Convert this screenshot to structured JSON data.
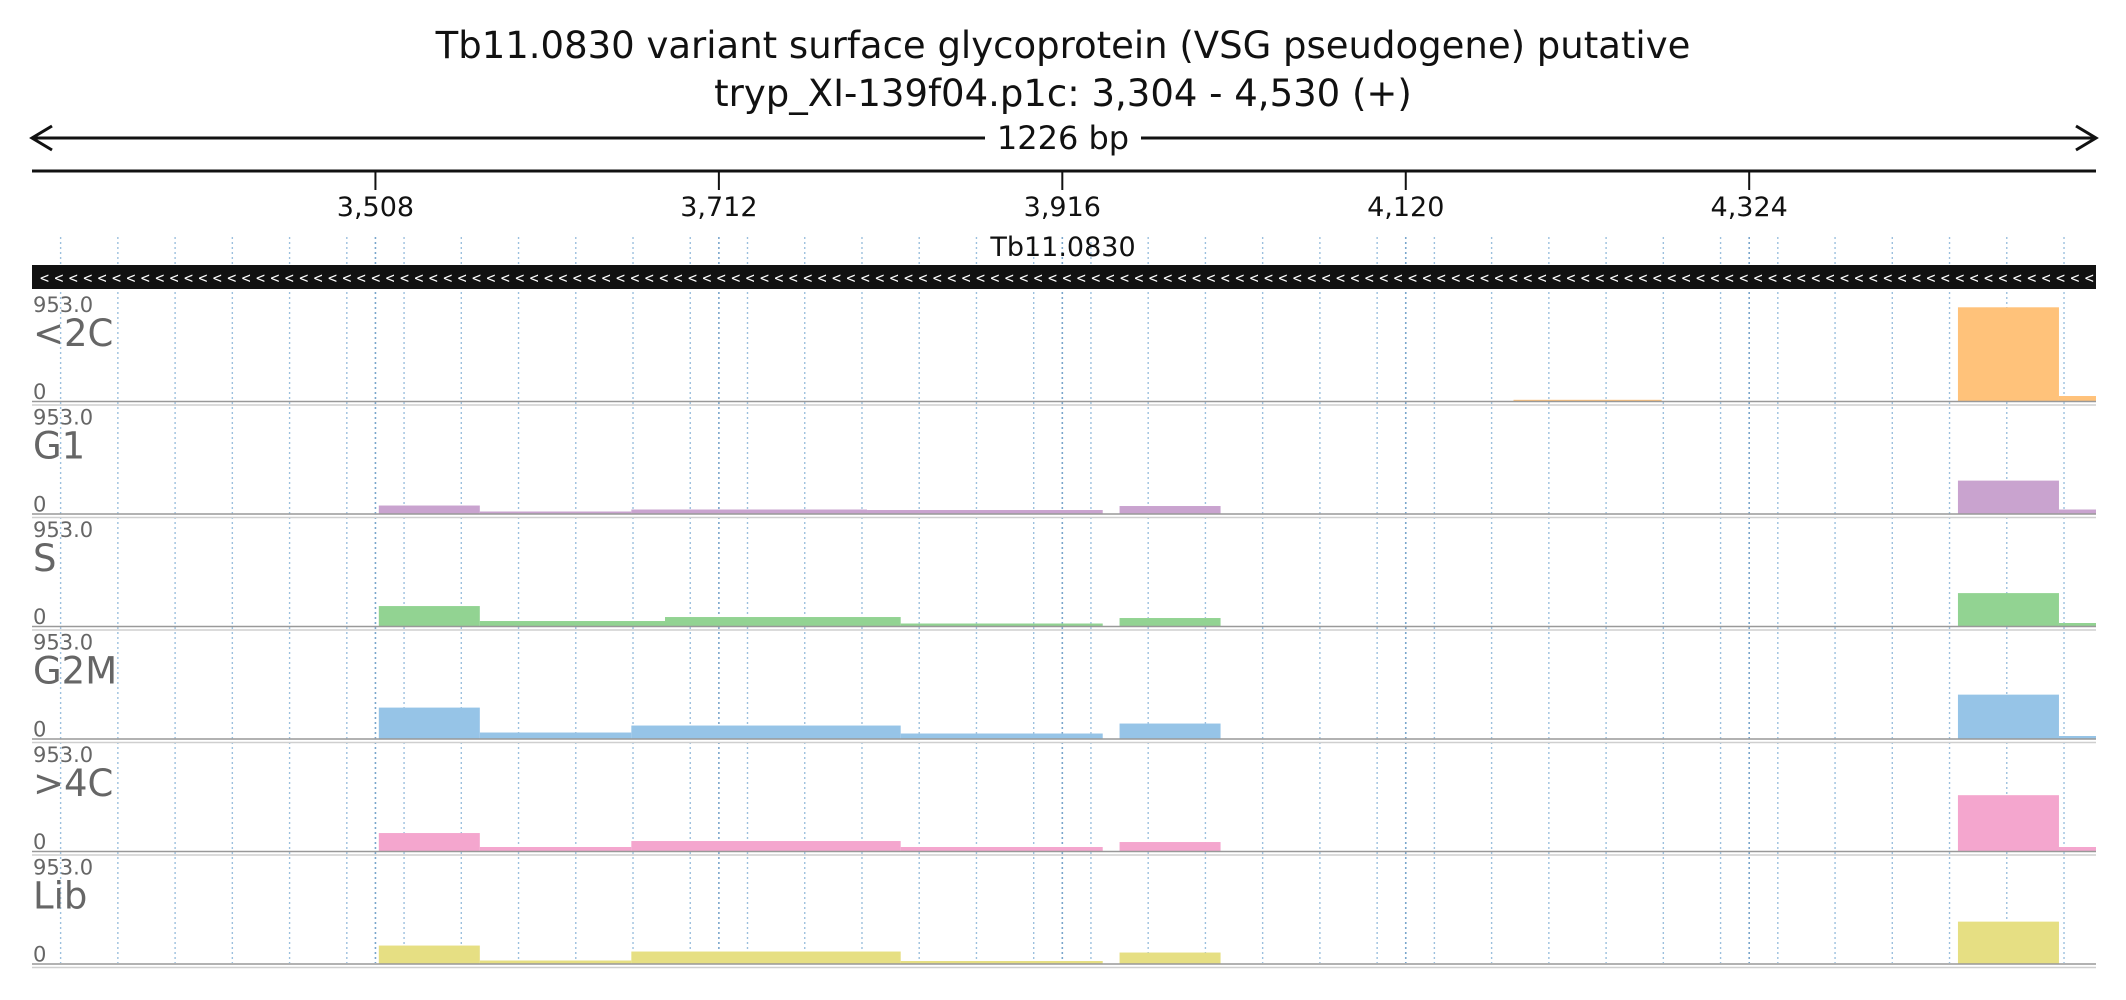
{
  "chart_data": {
    "type": "area",
    "title": "Tb11.0830  variant surface glycoprotein (VSG  pseudogene)  putative",
    "subtitle": "tryp_XI-139f04.p1c: 3,304 - 4,530 (+)",
    "span_label": "1226 bp",
    "x_range": [
      3304,
      4530
    ],
    "x_ticks": [
      3508,
      3712,
      3916,
      4120,
      4324
    ],
    "x_tick_labels": [
      "3,508",
      "3,712",
      "3,916",
      "4,120",
      "4,324"
    ],
    "gene": {
      "name": "Tb11.0830",
      "start": 3304,
      "end": 4530,
      "strand": "-"
    },
    "y_range": [
      0,
      953.0
    ],
    "y_max_label": "953.0",
    "y_min_label": "0",
    "tracks": [
      {
        "name": "<2C",
        "color": "#ffc27a",
        "segments": [
          {
            "start": 4184,
            "end": 4272,
            "value": 12
          },
          {
            "start": 4448,
            "end": 4508,
            "value": 940
          },
          {
            "start": 4508,
            "end": 4530,
            "value": 50
          }
        ]
      },
      {
        "name": "G1",
        "color": "#c9a3cf",
        "segments": [
          {
            "start": 3510,
            "end": 3570,
            "value": 80
          },
          {
            "start": 3570,
            "end": 3660,
            "value": 20
          },
          {
            "start": 3660,
            "end": 3800,
            "value": 40
          },
          {
            "start": 3800,
            "end": 3940,
            "value": 35
          },
          {
            "start": 3950,
            "end": 4010,
            "value": 75
          },
          {
            "start": 4448,
            "end": 4508,
            "value": 330
          },
          {
            "start": 4508,
            "end": 4530,
            "value": 40
          }
        ]
      },
      {
        "name": "S",
        "color": "#92d392",
        "segments": [
          {
            "start": 3510,
            "end": 3570,
            "value": 200
          },
          {
            "start": 3570,
            "end": 3680,
            "value": 50
          },
          {
            "start": 3680,
            "end": 3820,
            "value": 90
          },
          {
            "start": 3820,
            "end": 3940,
            "value": 25
          },
          {
            "start": 3950,
            "end": 4010,
            "value": 80
          },
          {
            "start": 4448,
            "end": 4508,
            "value": 330
          },
          {
            "start": 4508,
            "end": 4530,
            "value": 30
          }
        ]
      },
      {
        "name": "G2M",
        "color": "#96c4e7",
        "segments": [
          {
            "start": 3510,
            "end": 3570,
            "value": 310
          },
          {
            "start": 3570,
            "end": 3660,
            "value": 60
          },
          {
            "start": 3660,
            "end": 3820,
            "value": 130
          },
          {
            "start": 3820,
            "end": 3940,
            "value": 50
          },
          {
            "start": 3950,
            "end": 4010,
            "value": 150
          },
          {
            "start": 4448,
            "end": 4508,
            "value": 440
          },
          {
            "start": 4508,
            "end": 4530,
            "value": 25
          }
        ]
      },
      {
        "name": ">4C",
        "color": "#f4a6ce",
        "segments": [
          {
            "start": 3510,
            "end": 3570,
            "value": 180
          },
          {
            "start": 3570,
            "end": 3660,
            "value": 40
          },
          {
            "start": 3660,
            "end": 3820,
            "value": 100
          },
          {
            "start": 3820,
            "end": 3940,
            "value": 40
          },
          {
            "start": 3950,
            "end": 4010,
            "value": 90
          },
          {
            "start": 4448,
            "end": 4508,
            "value": 560
          },
          {
            "start": 4508,
            "end": 4530,
            "value": 40
          }
        ]
      },
      {
        "name": "Lib",
        "color": "#e6df83",
        "segments": [
          {
            "start": 3510,
            "end": 3570,
            "value": 180
          },
          {
            "start": 3570,
            "end": 3660,
            "value": 30
          },
          {
            "start": 3660,
            "end": 3820,
            "value": 120
          },
          {
            "start": 3820,
            "end": 3940,
            "value": 25
          },
          {
            "start": 3950,
            "end": 4010,
            "value": 110
          },
          {
            "start": 4448,
            "end": 4508,
            "value": 420
          }
        ]
      }
    ],
    "grid": true,
    "legend": "none"
  }
}
